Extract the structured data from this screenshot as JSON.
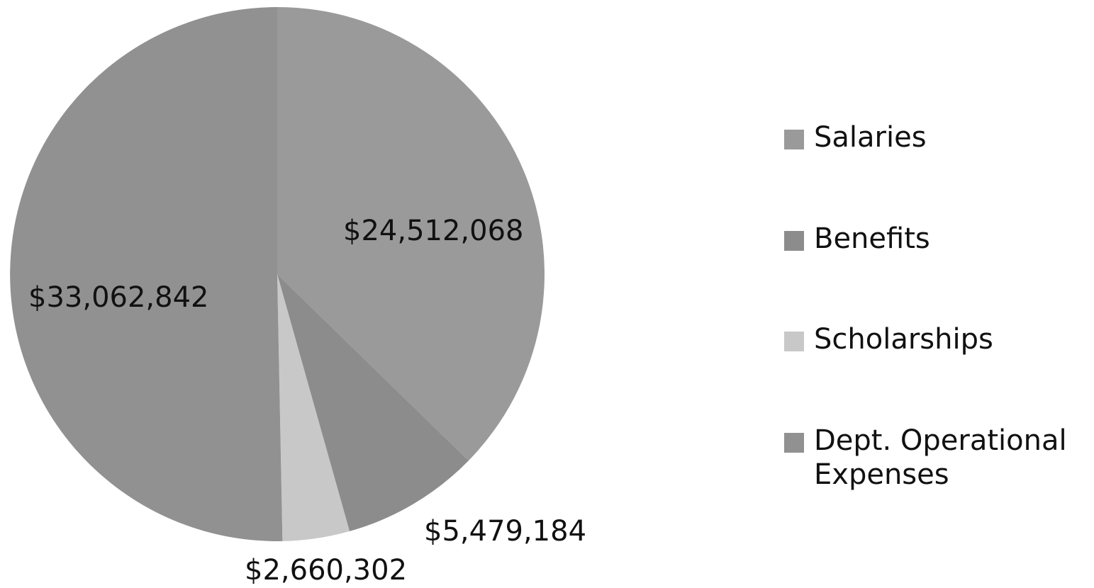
{
  "chart_data": {
    "type": "pie",
    "slices": [
      {
        "name": "Salaries",
        "value": 24512068,
        "label": "$24,512,068",
        "color": "#9a9a9a"
      },
      {
        "name": "Benefits",
        "value": 5479184,
        "label": "$5,479,184",
        "color": "#8c8c8c"
      },
      {
        "name": "Scholarships",
        "value": 2660302,
        "label": "$2,660,302",
        "color": "#c8c8c8"
      },
      {
        "name": "Dept. Operational Expenses",
        "value": 33062842,
        "label": "$33,062,842",
        "color": "#919191"
      }
    ],
    "legend_position": "right",
    "start_angle": "12 o'clock",
    "direction": "clockwise"
  },
  "legend": {
    "items": [
      {
        "label": "Salaries",
        "color": "#9a9a9a"
      },
      {
        "label": "Benefits",
        "color": "#8c8c8c"
      },
      {
        "label": "Scholarships",
        "color": "#c8c8c8"
      },
      {
        "label": "Dept. Operational Expenses",
        "color": "#919191"
      }
    ]
  }
}
